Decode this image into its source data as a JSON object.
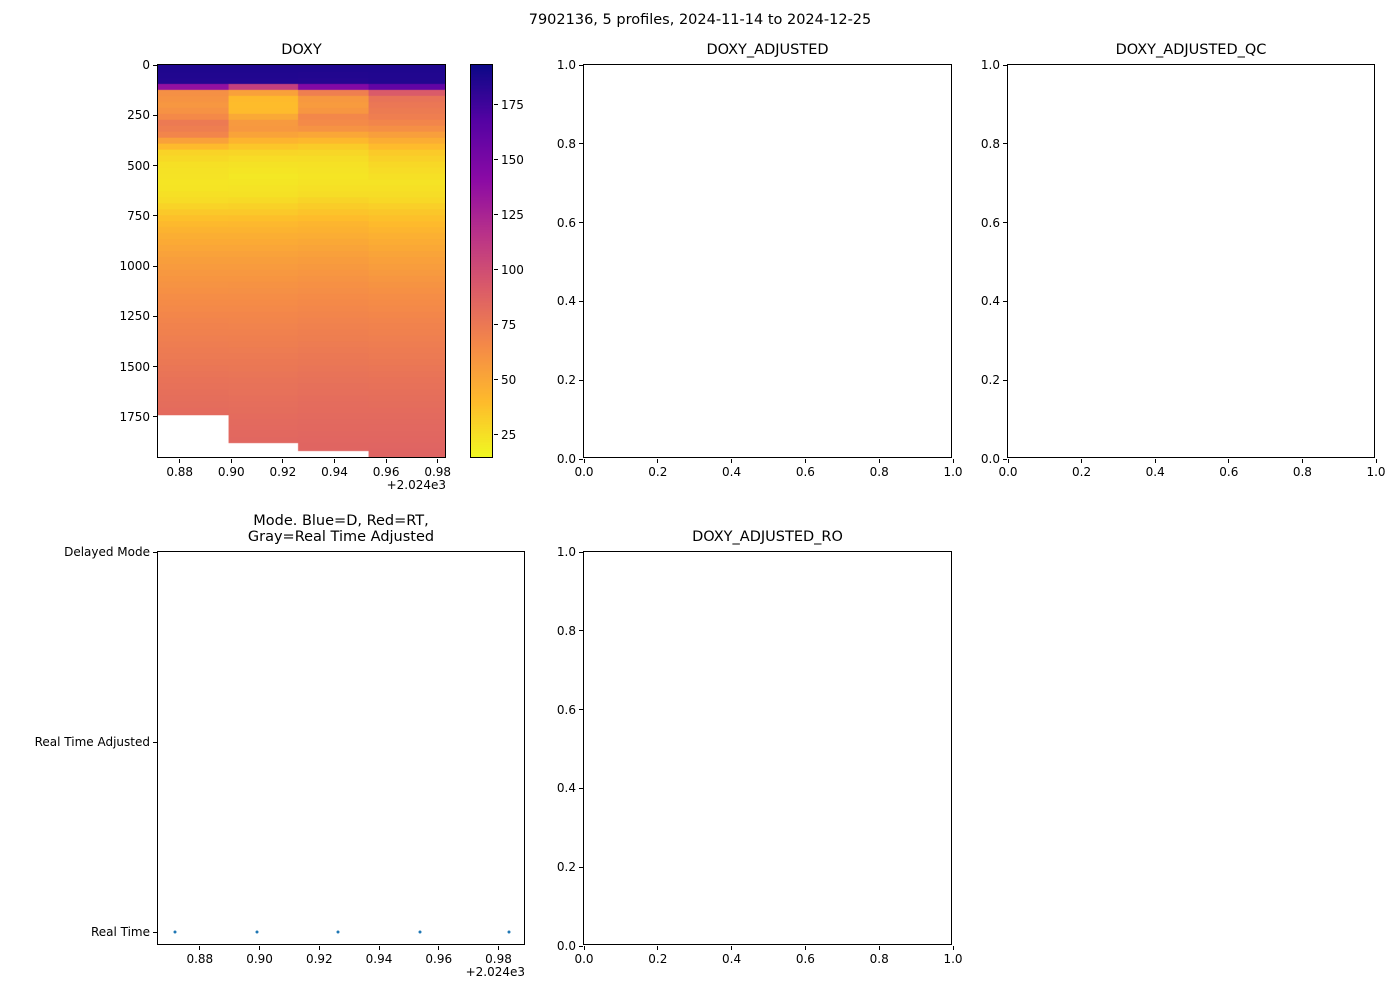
{
  "figure": {
    "suptitle": "7902136, 5 profiles, 2024-11-14 to 2024-12-25",
    "background": "#ffffff"
  },
  "chart_data": [
    {
      "id": "doxy",
      "type": "heatmap",
      "title": "DOXY",
      "xlabel_offset": "+2.024e3",
      "xlim": [
        0.8716,
        0.9836
      ],
      "ylim": [
        0,
        1960
      ],
      "y_inverted": true,
      "xticks": [
        0.88,
        0.9,
        0.92,
        0.94,
        0.96,
        0.98
      ],
      "xtick_labels": [
        "0.88",
        "0.90",
        "0.92",
        "0.94",
        "0.96",
        "0.98"
      ],
      "yticks": [
        0,
        250,
        500,
        750,
        1000,
        1250,
        1500,
        1750
      ],
      "ytick_labels": [
        "0",
        "250",
        "500",
        "750",
        "1000",
        "1250",
        "1500",
        "1750"
      ],
      "colorbar": {
        "colormap": "plasma_r",
        "vmin": 14,
        "vmax": 193,
        "ticks": [
          25,
          50,
          75,
          100,
          125,
          150,
          175
        ],
        "tick_labels": [
          "25",
          "50",
          "75",
          "100",
          "125",
          "150",
          "175"
        ]
      },
      "time_edges": [
        0.8716,
        0.899,
        0.9262,
        0.9536,
        0.9836
      ],
      "columns": [
        {
          "max_depth": 1750,
          "points": [
            [
              0,
              187
            ],
            [
              85,
              185
            ],
            [
              100,
              158
            ],
            [
              115,
              96
            ],
            [
              135,
              62
            ],
            [
              200,
              58
            ],
            [
              250,
              64
            ],
            [
              285,
              74
            ],
            [
              340,
              70
            ],
            [
              385,
              48
            ],
            [
              430,
              30
            ],
            [
              500,
              24
            ],
            [
              600,
              22
            ],
            [
              680,
              26
            ],
            [
              750,
              36
            ],
            [
              850,
              46
            ],
            [
              1000,
              56
            ],
            [
              1150,
              63
            ],
            [
              1300,
              69
            ],
            [
              1450,
              74
            ],
            [
              1600,
              79
            ],
            [
              1750,
              83
            ]
          ]
        },
        {
          "max_depth": 1890,
          "points": [
            [
              0,
              187
            ],
            [
              80,
              185
            ],
            [
              95,
              148
            ],
            [
              112,
              80
            ],
            [
              130,
              55
            ],
            [
              165,
              40
            ],
            [
              220,
              38
            ],
            [
              265,
              52
            ],
            [
              300,
              60
            ],
            [
              335,
              55
            ],
            [
              385,
              40
            ],
            [
              425,
              30
            ],
            [
              480,
              24
            ],
            [
              560,
              21
            ],
            [
              650,
              24
            ],
            [
              720,
              32
            ],
            [
              800,
              42
            ],
            [
              950,
              53
            ],
            [
              1100,
              61
            ],
            [
              1250,
              67
            ],
            [
              1400,
              72
            ],
            [
              1550,
              77
            ],
            [
              1700,
              81
            ],
            [
              1890,
              85
            ]
          ]
        },
        {
          "max_depth": 1930,
          "points": [
            [
              0,
              187
            ],
            [
              90,
              184
            ],
            [
              108,
              138
            ],
            [
              128,
              75
            ],
            [
              160,
              58
            ],
            [
              210,
              55
            ],
            [
              260,
              68
            ],
            [
              310,
              62
            ],
            [
              360,
              45
            ],
            [
              415,
              30
            ],
            [
              470,
              25
            ],
            [
              550,
              22
            ],
            [
              640,
              25
            ],
            [
              710,
              33
            ],
            [
              800,
              43
            ],
            [
              950,
              54
            ],
            [
              1100,
              62
            ],
            [
              1250,
              68
            ],
            [
              1400,
              73
            ],
            [
              1550,
              78
            ],
            [
              1700,
              82
            ],
            [
              1930,
              86
            ]
          ]
        },
        {
          "max_depth": 1960,
          "points": [
            [
              0,
              187
            ],
            [
              95,
              185
            ],
            [
              118,
              130
            ],
            [
              140,
              80
            ],
            [
              185,
              76
            ],
            [
              250,
              72
            ],
            [
              305,
              65
            ],
            [
              360,
              50
            ],
            [
              430,
              34
            ],
            [
              500,
              27
            ],
            [
              580,
              23
            ],
            [
              660,
              26
            ],
            [
              740,
              35
            ],
            [
              850,
              45
            ],
            [
              1000,
              55
            ],
            [
              1150,
              63
            ],
            [
              1300,
              69
            ],
            [
              1450,
              74
            ],
            [
              1600,
              79
            ],
            [
              1750,
              83
            ],
            [
              1960,
              87
            ]
          ]
        }
      ]
    },
    {
      "id": "doxy_adjusted",
      "type": "empty",
      "title": "DOXY_ADJUSTED",
      "xlim": [
        0,
        1
      ],
      "ylim": [
        0,
        1
      ],
      "xticks": [
        0,
        0.2,
        0.4,
        0.6,
        0.8,
        1.0
      ],
      "xtick_labels": [
        "0.0",
        "0.2",
        "0.4",
        "0.6",
        "0.8",
        "1.0"
      ],
      "yticks": [
        0,
        0.2,
        0.4,
        0.6,
        0.8,
        1.0
      ],
      "ytick_labels": [
        "0.0",
        "0.2",
        "0.4",
        "0.6",
        "0.8",
        "1.0"
      ]
    },
    {
      "id": "doxy_adjusted_qc",
      "type": "empty",
      "title": "DOXY_ADJUSTED_QC",
      "xlim": [
        0,
        1
      ],
      "ylim": [
        0,
        1
      ],
      "xticks": [
        0,
        0.2,
        0.4,
        0.6,
        0.8,
        1.0
      ],
      "xtick_labels": [
        "0.0",
        "0.2",
        "0.4",
        "0.6",
        "0.8",
        "1.0"
      ],
      "yticks": [
        0,
        0.2,
        0.4,
        0.6,
        0.8,
        1.0
      ],
      "ytick_labels": [
        "0.0",
        "0.2",
        "0.4",
        "0.6",
        "0.8",
        "1.0"
      ]
    },
    {
      "id": "mode",
      "type": "categorical_scatter",
      "title_lines": [
        "Mode. Blue=D, Red=RT,",
        "Gray=Real Time Adjusted"
      ],
      "xlabel_offset": "+2.024e3",
      "xlim": [
        0.866,
        0.9892
      ],
      "xticks": [
        0.88,
        0.9,
        0.92,
        0.94,
        0.96,
        0.98
      ],
      "xtick_labels": [
        "0.88",
        "0.90",
        "0.92",
        "0.94",
        "0.96",
        "0.98"
      ],
      "ycategories": [
        "Delayed Mode",
        "Real Time Adjusted",
        "Real Time"
      ],
      "point_color": "#1f77b4",
      "points": [
        {
          "x": 0.8716,
          "mode": "Real Time"
        },
        {
          "x": 0.899,
          "mode": "Real Time"
        },
        {
          "x": 0.9262,
          "mode": "Real Time"
        },
        {
          "x": 0.9536,
          "mode": "Real Time"
        },
        {
          "x": 0.9836,
          "mode": "Real Time"
        }
      ]
    },
    {
      "id": "doxy_adjusted_ro",
      "type": "empty",
      "title": "DOXY_ADJUSTED_RO",
      "xlim": [
        0,
        1
      ],
      "ylim": [
        0,
        1
      ],
      "xticks": [
        0,
        0.2,
        0.4,
        0.6,
        0.8,
        1.0
      ],
      "xtick_labels": [
        "0.0",
        "0.2",
        "0.4",
        "0.6",
        "0.8",
        "1.0"
      ],
      "yticks": [
        0,
        0.2,
        0.4,
        0.6,
        0.8,
        1.0
      ],
      "ytick_labels": [
        "0.0",
        "0.2",
        "0.4",
        "0.6",
        "0.8",
        "1.0"
      ]
    }
  ]
}
